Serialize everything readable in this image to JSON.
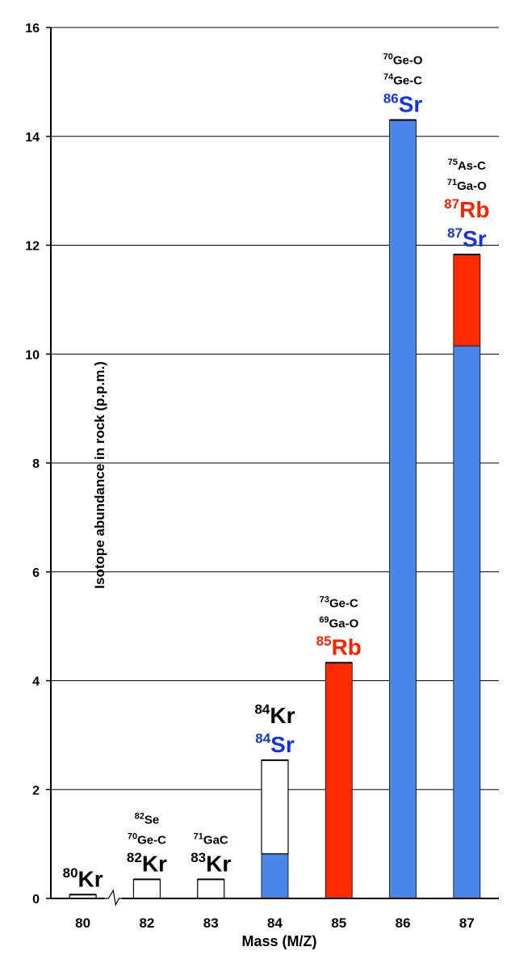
{
  "chart_data": {
    "type": "bar",
    "xlabel": "Mass (M/Z)",
    "ylabel": "Isotope abundance in rock (p.p.m.)",
    "ylim": [
      0,
      16
    ],
    "yticks": [
      0,
      2,
      4,
      6,
      8,
      10,
      12,
      14,
      16
    ],
    "grid": true,
    "axis_break_between": [
      "80",
      "82"
    ],
    "colors": {
      "Kr": "#ffffff",
      "Sr": "#4a86e8",
      "Rb": "#ff2a00",
      "Sr_label": "#1434e0",
      "Rb_label": "#ff2200"
    },
    "categories": [
      "80",
      "82",
      "83",
      "84",
      "85",
      "86",
      "87"
    ],
    "series": [
      {
        "key": "Sr",
        "values": [
          0,
          0,
          0,
          0.82,
          0,
          14.3,
          10.15
        ]
      },
      {
        "key": "Rb",
        "values": [
          0,
          0,
          0,
          0,
          4.33,
          0,
          1.68
        ]
      },
      {
        "key": "Kr",
        "values": [
          0.07,
          0.35,
          0.35,
          1.72,
          0,
          0,
          0
        ]
      }
    ],
    "annotations": [
      {
        "category": "80",
        "lines": [
          {
            "sup": "80",
            "text": "Kr",
            "color": "#000000",
            "size": "big"
          }
        ]
      },
      {
        "category": "82",
        "lines": [
          {
            "sup": "82",
            "text": "Se",
            "color": "#000000",
            "size": "small"
          },
          {
            "sup": "70",
            "text": "Ge-C",
            "color": "#000000",
            "size": "small"
          },
          {
            "sup": "82",
            "text": "Kr",
            "color": "#000000",
            "size": "big"
          }
        ]
      },
      {
        "category": "83",
        "lines": [
          {
            "sup": "71",
            "text": "GaC",
            "color": "#000000",
            "size": "small"
          },
          {
            "sup": "83",
            "text": "Kr",
            "color": "#000000",
            "size": "big"
          }
        ]
      },
      {
        "category": "84",
        "lines": [
          {
            "sup": "84",
            "text": "Kr",
            "color": "#000000",
            "size": "big"
          },
          {
            "sup": "84",
            "text": "Sr",
            "color": "#1434e0",
            "size": "big"
          }
        ]
      },
      {
        "category": "85",
        "lines": [
          {
            "sup": "73",
            "text": "Ge-C",
            "color": "#000000",
            "size": "small"
          },
          {
            "sup": "69",
            "text": "Ga-O",
            "color": "#000000",
            "size": "small"
          },
          {
            "sup": "85",
            "text": "Rb",
            "color": "#ff2200",
            "size": "big"
          }
        ]
      },
      {
        "category": "86",
        "lines": [
          {
            "sup": "70",
            "text": "Ge-O",
            "color": "#000000",
            "size": "small"
          },
          {
            "sup": "74",
            "text": "Ge-C",
            "color": "#000000",
            "size": "small"
          },
          {
            "sup": "86",
            "text": "Sr",
            "color": "#1434e0",
            "size": "big"
          }
        ]
      },
      {
        "category": "87",
        "lines": [
          {
            "sup": "75",
            "text": "As-C",
            "color": "#000000",
            "size": "small"
          },
          {
            "sup": "71",
            "text": "Ga-O",
            "color": "#000000",
            "size": "small"
          },
          {
            "sup": "87",
            "text": "Rb",
            "color": "#ff2200",
            "size": "big"
          },
          {
            "sup": "87",
            "text": "Sr",
            "color": "#1434e0",
            "size": "big"
          }
        ]
      }
    ]
  }
}
